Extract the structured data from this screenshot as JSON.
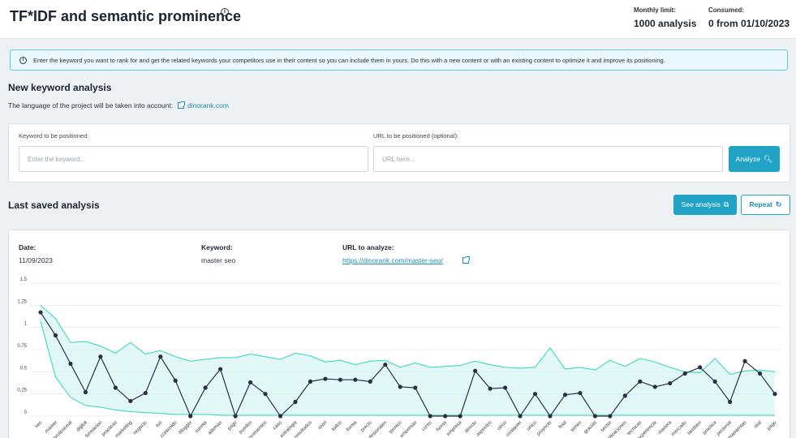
{
  "header": {
    "title": "TF*IDF and semantic prominence",
    "monthly_limit_label": "Monthly limit:",
    "monthly_limit_value": "1000 analysis",
    "consumed_label": "Consumed:",
    "consumed_value": "0 from 01/10/2023"
  },
  "banner": {
    "text": "Enter the keyword you want to rank for and get the related keywords your competitors use in their content so you can include them in yours. Do this with a new content or with an existing content to optimize it and improve its positioning."
  },
  "new_analysis": {
    "title": "New keyword analysis",
    "language_text": "The language of the project will be taken into account:",
    "language_link": "dinorank.com",
    "keyword_label": "Keyword to be positioned:",
    "keyword_placeholder": "Enter the keyword...",
    "url_label": "URL to be positioned (optional):",
    "url_placeholder": "URL here...",
    "analyze_button": "Analyze"
  },
  "last_saved": {
    "title": "Last saved analysis",
    "see_analysis_button": "See analysis",
    "repeat_button": "Repeat",
    "date_label": "Date:",
    "date_value": "11/09/2023",
    "keyword_label": "Keyword:",
    "keyword_value": "master seo",
    "url_label": "URL to analyze:",
    "url_value": "https://dinorank.com/master-seo/"
  },
  "icons": {
    "info": "info-circle-icon",
    "external": "external-link-icon",
    "search": "search-icon",
    "repeat": "refresh-icon"
  },
  "colors": {
    "accent": "#20a3c4",
    "band_fill": "#c9f3ee",
    "band_stroke": "#2fd6b8",
    "line": "#2a2f45"
  },
  "chart_data": {
    "type": "area",
    "categories": [
      "seo",
      "master",
      "profesional",
      "digital",
      "formacion",
      "practicas",
      "marketing",
      "negocio",
      "tus",
      "contenido",
      "blogger",
      "cuenta",
      "ademas",
      "pago",
      "puedes",
      "conocimientos",
      "caso",
      "estrategia",
      "resultados",
      "nivel",
      "todos",
      "forma",
      "precio",
      "profesionales",
      "tecnico",
      "empresas",
      "curso",
      "horas",
      "empresa",
      "directo",
      "aspectos",
      "otros",
      "cualquier",
      "unico",
      "proyecto",
      "final",
      "tienes",
      "gracias",
      "sector",
      "aplicaciones",
      "tecnicas",
      "experiencia",
      "manera",
      "mercado",
      "tambien",
      "practica",
      "personal",
      "herramientas",
      "real",
      "pago"
    ],
    "series": [
      {
        "values": [
          1.17,
          0.91,
          0.59,
          0.27,
          0.67,
          0.32,
          0.17,
          0.26,
          0.67,
          0.4,
          0.0,
          0.32,
          0.53,
          0.0,
          0.38,
          0.25,
          0.0,
          0.16,
          0.39,
          0.42,
          0.41,
          0.41,
          0.39,
          0.58,
          0.33,
          0.32,
          0.0,
          0.0,
          0.0,
          0.51,
          0.31,
          0.32,
          0.0,
          0.25,
          0.0,
          0.24,
          0.26,
          0.0,
          0.0,
          0.23,
          0.39,
          0.33,
          0.37,
          0.48,
          0.55,
          0.39,
          0.16,
          0.62,
          0.48,
          0.25
        ]
      },
      {
        "values": [
          1.25,
          1.1,
          0.83,
          0.84,
          0.79,
          0.71,
          0.83,
          0.7,
          0.74,
          0.67,
          0.62,
          0.64,
          0.66,
          0.66,
          0.7,
          0.67,
          0.64,
          0.71,
          0.68,
          0.61,
          0.63,
          0.58,
          0.62,
          0.63,
          0.55,
          0.6,
          0.55,
          0.56,
          0.57,
          0.62,
          0.58,
          0.55,
          0.54,
          0.55,
          0.77,
          0.53,
          0.55,
          0.52,
          0.63,
          0.56,
          0.65,
          0.61,
          0.55,
          0.5,
          0.49,
          0.65,
          0.47,
          0.51,
          0.52,
          0.5
        ]
      },
      {
        "values": [
          1.07,
          0.44,
          0.21,
          0.12,
          0.1,
          0.07,
          0.05,
          0.04,
          0.03,
          0.02,
          0.02,
          0.02,
          0.01,
          0.01,
          0.01,
          0.01,
          0.01,
          0.01,
          0.01,
          0.01,
          0.01,
          0.01,
          0.01,
          0.01,
          0.01,
          0.01,
          0.01,
          0.01,
          0.01,
          0.01,
          0.01,
          0.01,
          0.01,
          0.01,
          0.01,
          0.01,
          0.01,
          0.01,
          0.01,
          0.01,
          0.01,
          0.01,
          0.01,
          0.01,
          0.01,
          0.01,
          0.01,
          0.01,
          0.01,
          0.01
        ]
      }
    ],
    "yticks": [
      "0",
      "0.25",
      "0.5",
      "0.75",
      "1",
      "1.25",
      "1.5"
    ],
    "ylim": [
      0,
      1.5
    ],
    "grid": true
  }
}
